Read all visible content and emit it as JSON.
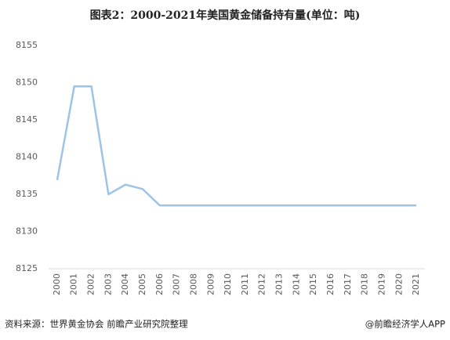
{
  "chart_data": {
    "type": "line",
    "title": "图表2：2000-2021年美国黄金储备持有量(单位：吨)",
    "categories": [
      "2000",
      "2001",
      "2002",
      "2003",
      "2004",
      "2005",
      "2006",
      "2007",
      "2008",
      "2009",
      "2010",
      "2011",
      "2012",
      "2013",
      "2014",
      "2015",
      "2016",
      "2017",
      "2018",
      "2019",
      "2020",
      "2021"
    ],
    "series": [
      {
        "name": "黄金储备持有量",
        "color": "#9dc3e6",
        "values": [
          8136.9,
          8149.5,
          8149.5,
          8135.0,
          8136.3,
          8135.7,
          8133.5,
          8133.5,
          8133.5,
          8133.5,
          8133.5,
          8133.5,
          8133.5,
          8133.5,
          8133.5,
          8133.5,
          8133.5,
          8133.5,
          8133.5,
          8133.5,
          8133.5,
          8133.5
        ]
      }
    ],
    "ylim": [
      8125,
      8155
    ],
    "yticks": [
      8125,
      8130,
      8135,
      8140,
      8145,
      8150,
      8155
    ],
    "legend": false,
    "grid": false,
    "source": "资料来源：世界黄金协会 前瞻产业研究院整理",
    "credit": "@前瞻经济学人APP"
  }
}
